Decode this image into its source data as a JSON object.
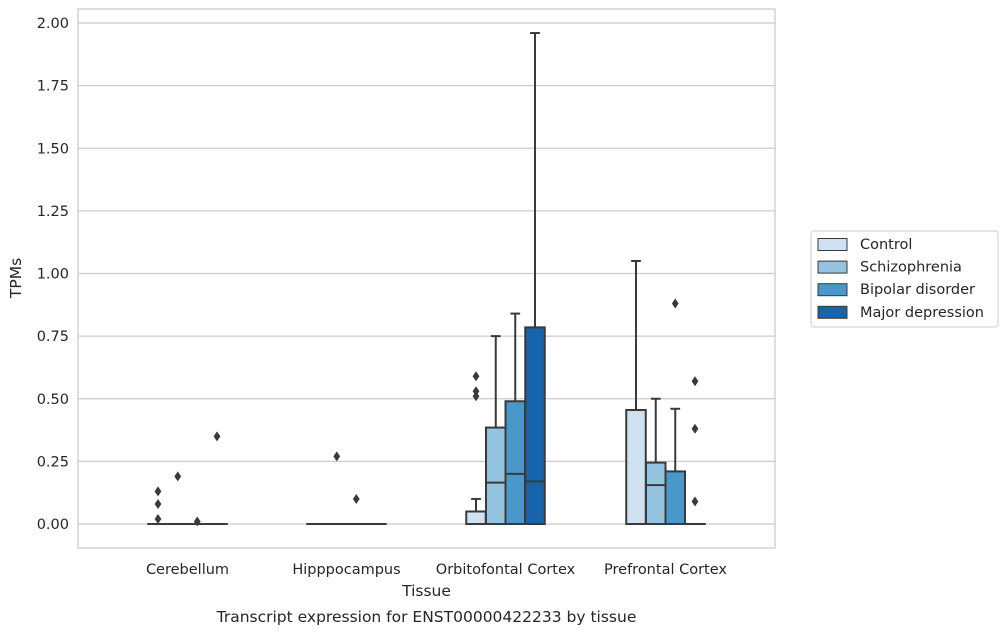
{
  "caption": "Transcript expression for ENST00000422233 by tissue",
  "chart_data": {
    "type": "box",
    "title": "",
    "xlabel": "Tissue",
    "ylabel": "TPMs",
    "ylim": [
      -0.09,
      2.06
    ],
    "yticks": [
      "0.00",
      "0.25",
      "0.50",
      "0.75",
      "1.00",
      "1.25",
      "1.50",
      "1.75",
      "2.00"
    ],
    "ytick_values": [
      0,
      0.25,
      0.5,
      0.75,
      1.0,
      1.25,
      1.5,
      1.75,
      2.0
    ],
    "grid": "horizontal",
    "legend_placement": "right",
    "categories": [
      "Cerebellum",
      "Hipppocampus",
      "Orbitofontal Cortex",
      "Prefrontal Cortex"
    ],
    "series": [
      {
        "name": "Control",
        "color": "#d0e1f2",
        "boxes": [
          {
            "q1": 0,
            "median": 0,
            "q3": 0,
            "whisker_low": 0,
            "whisker_high": 0,
            "outliers": [
              0.02,
              0.08,
              0.13
            ]
          },
          {
            "q1": 0,
            "median": 0,
            "q3": 0,
            "whisker_low": 0,
            "whisker_high": 0,
            "outliers": []
          },
          {
            "q1": 0,
            "median": 0,
            "q3": 0.05,
            "whisker_low": 0,
            "whisker_high": 0.1,
            "outliers": [
              0.51,
              0.53,
              0.59
            ]
          },
          {
            "q1": 0,
            "median": 0,
            "q3": 0.455,
            "whisker_low": 0,
            "whisker_high": 1.05,
            "outliers": []
          }
        ]
      },
      {
        "name": "Schizophrenia",
        "color": "#94c4df",
        "boxes": [
          {
            "q1": 0,
            "median": 0,
            "q3": 0,
            "whisker_low": 0,
            "whisker_high": 0,
            "outliers": [
              0.19
            ]
          },
          {
            "q1": 0,
            "median": 0,
            "q3": 0,
            "whisker_low": 0,
            "whisker_high": 0,
            "outliers": [
              0.27
            ]
          },
          {
            "q1": 0,
            "median": 0.165,
            "q3": 0.385,
            "whisker_low": 0,
            "whisker_high": 0.75,
            "outliers": []
          },
          {
            "q1": 0,
            "median": 0.155,
            "q3": 0.245,
            "whisker_low": 0,
            "whisker_high": 0.5,
            "outliers": []
          }
        ]
      },
      {
        "name": "Bipolar disorder",
        "color": "#4a98c9",
        "boxes": [
          {
            "q1": 0,
            "median": 0,
            "q3": 0,
            "whisker_low": 0,
            "whisker_high": 0,
            "outliers": [
              0.01
            ]
          },
          {
            "q1": 0,
            "median": 0,
            "q3": 0,
            "whisker_low": 0,
            "whisker_high": 0,
            "outliers": [
              0.1
            ]
          },
          {
            "q1": 0,
            "median": 0.2,
            "q3": 0.49,
            "whisker_low": 0,
            "whisker_high": 0.84,
            "outliers": []
          },
          {
            "q1": 0,
            "median": 0,
            "q3": 0.21,
            "whisker_low": 0,
            "whisker_high": 0.46,
            "outliers": [
              0.88
            ]
          }
        ]
      },
      {
        "name": "Major depression",
        "color": "#1764ab",
        "boxes": [
          {
            "q1": 0,
            "median": 0,
            "q3": 0,
            "whisker_low": 0,
            "whisker_high": 0,
            "outliers": [
              0.35
            ]
          },
          {
            "q1": 0,
            "median": 0,
            "q3": 0,
            "whisker_low": 0,
            "whisker_high": 0,
            "outliers": []
          },
          {
            "q1": 0,
            "median": 0.17,
            "q3": 0.785,
            "whisker_low": 0,
            "whisker_high": 1.96,
            "outliers": []
          },
          {
            "q1": 0,
            "median": 0,
            "q3": 0,
            "whisker_low": 0,
            "whisker_high": 0,
            "outliers": [
              0.09,
              0.38,
              0.57
            ]
          }
        ]
      }
    ]
  }
}
